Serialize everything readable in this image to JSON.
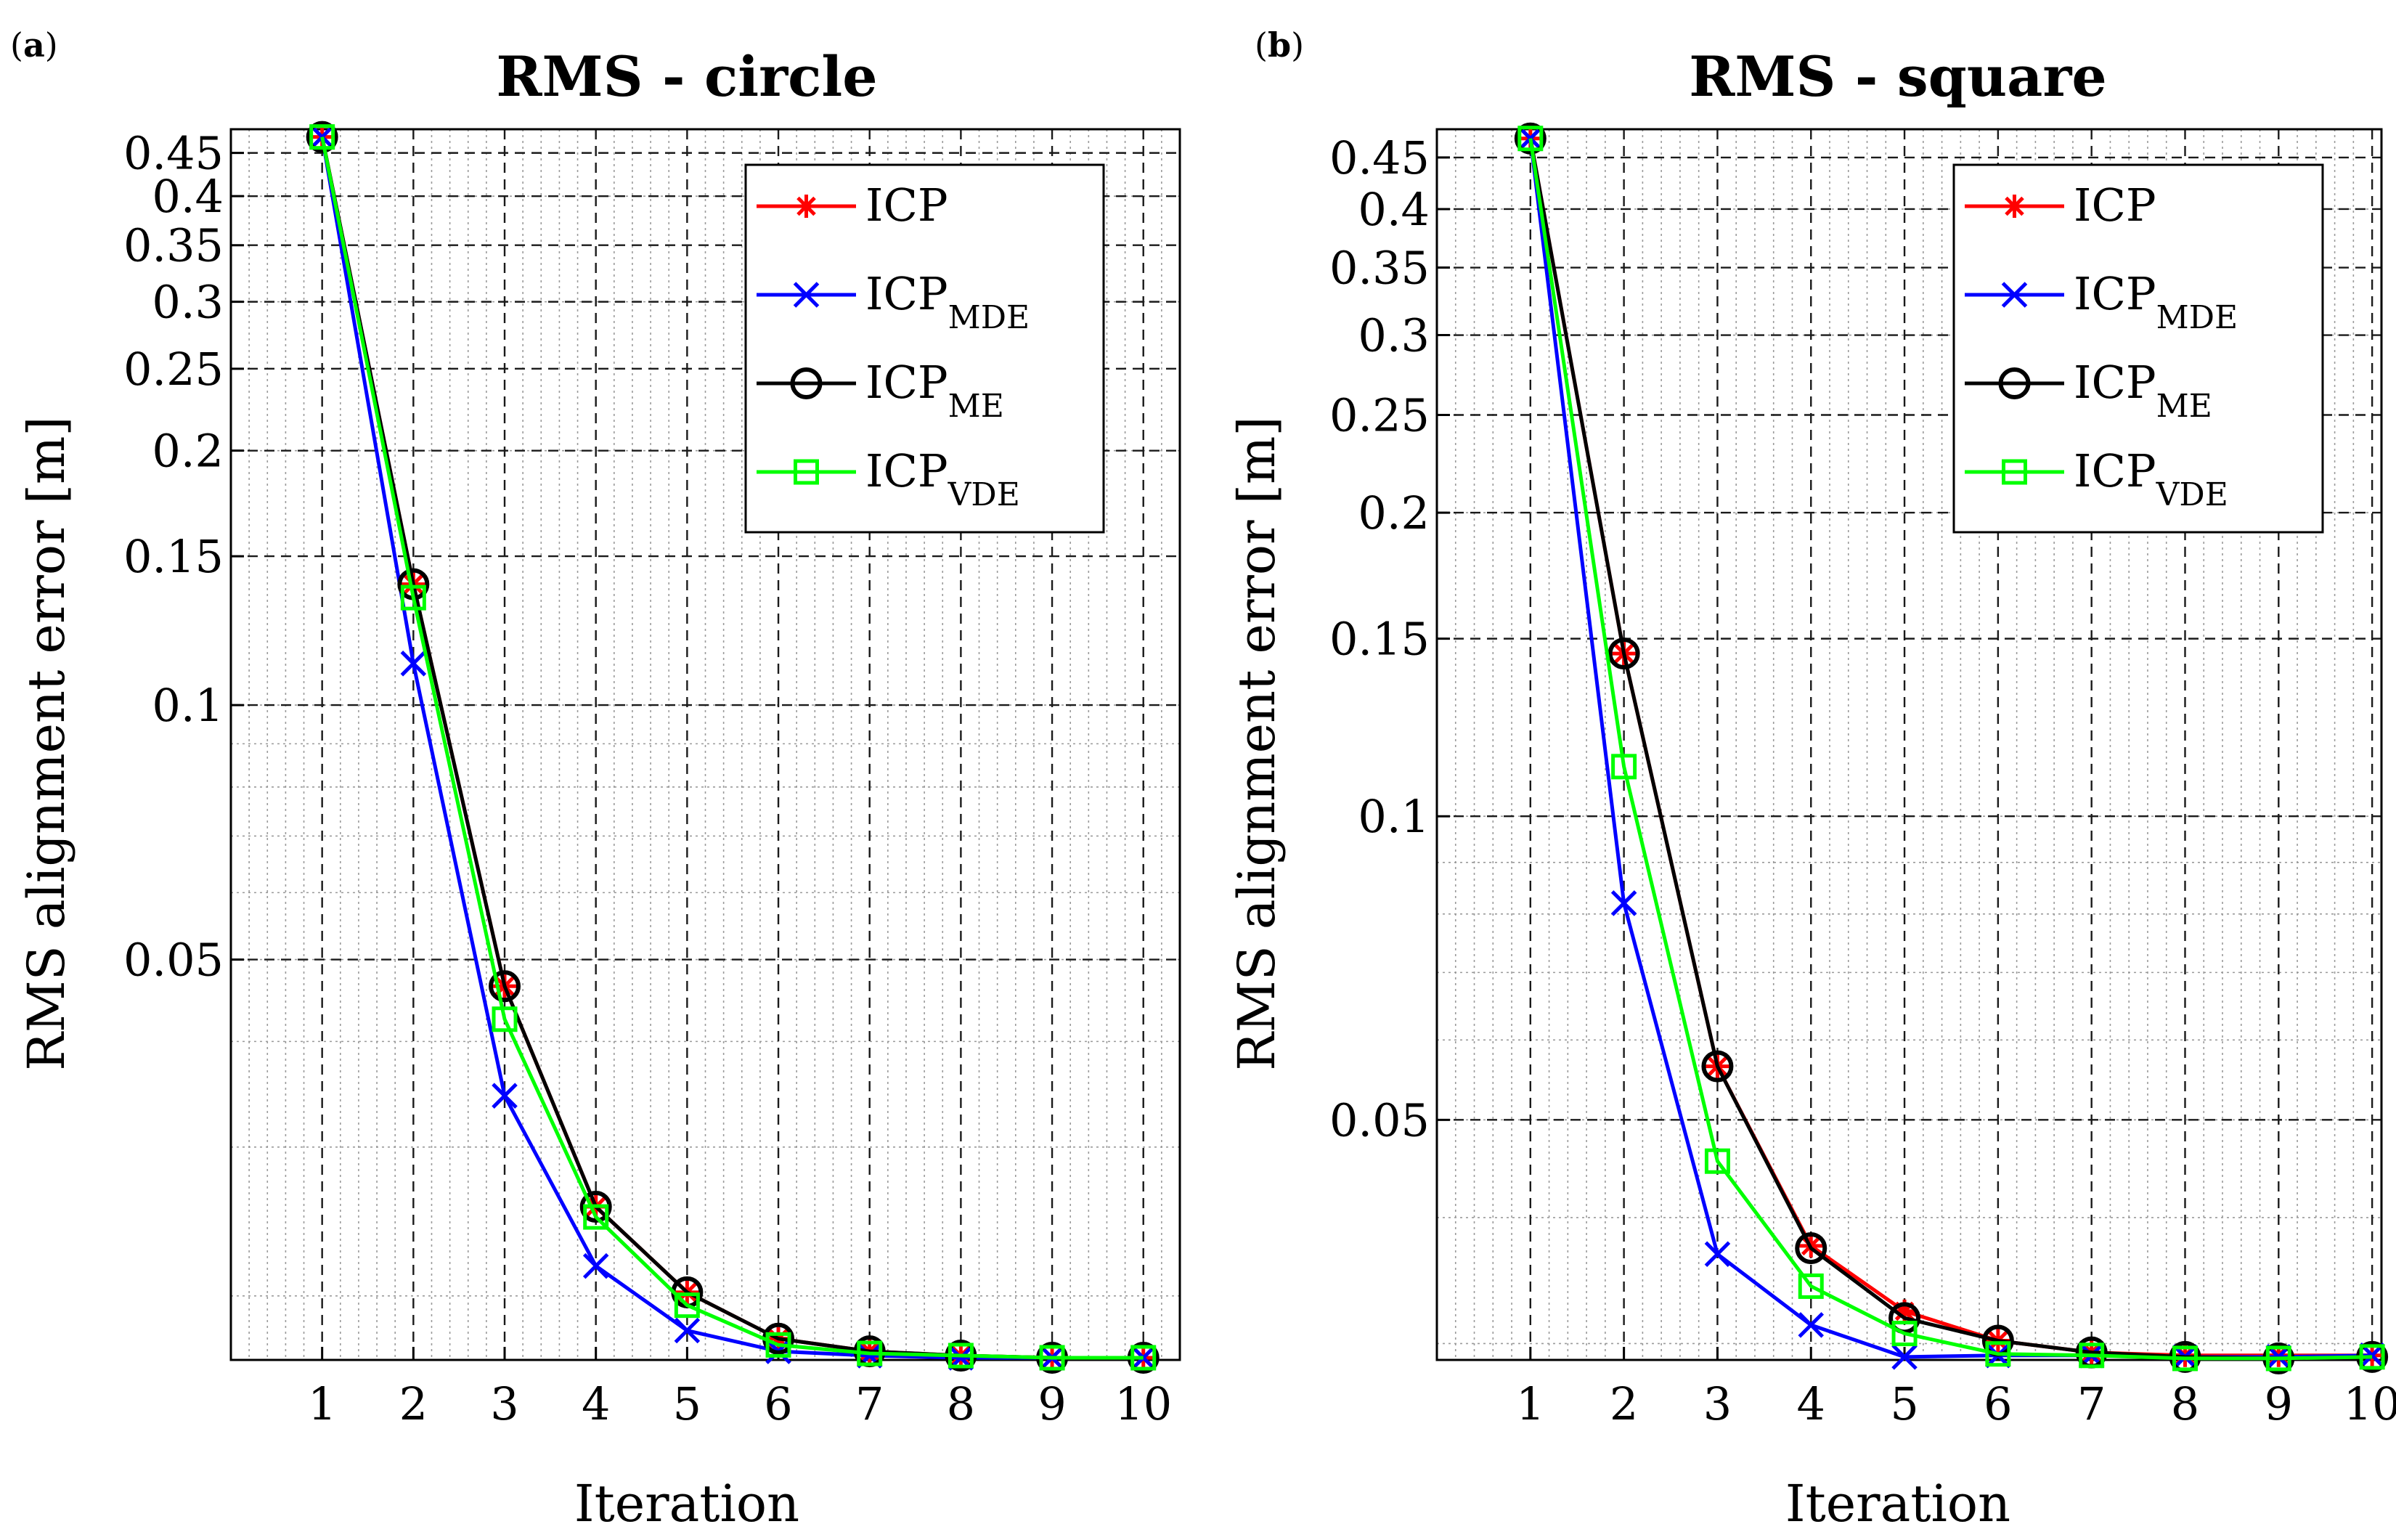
{
  "chart_data": [
    {
      "type": "line",
      "panel_label_prefix": "(",
      "panel_label_letter": "a",
      "panel_label_suffix": ")",
      "title": "RMS - circle",
      "xlabel": "Iteration",
      "ylabel": "RMS alignment error [m]",
      "yscale": "log",
      "xlim": [
        0,
        10.4
      ],
      "ylim": [
        0.0168,
        0.48
      ],
      "grid": true,
      "legend_position": "top-right",
      "x": [
        1,
        2,
        3,
        4,
        5,
        6,
        7,
        8,
        9,
        10
      ],
      "x_ticks": [
        "1",
        "2",
        "3",
        "4",
        "5",
        "6",
        "7",
        "8",
        "9",
        "10"
      ],
      "y_ticks": [
        {
          "value": 0.45,
          "label": "0.45"
        },
        {
          "value": 0.4,
          "label": "0.4"
        },
        {
          "value": 0.35,
          "label": "0.35"
        },
        {
          "value": 0.3,
          "label": "0.3"
        },
        {
          "value": 0.25,
          "label": "0.25"
        },
        {
          "value": 0.2,
          "label": "0.2"
        },
        {
          "value": 0.15,
          "label": "0.15"
        },
        {
          "value": 0.1,
          "label": "0.1"
        },
        {
          "value": 0.05,
          "label": "0.05"
        }
      ],
      "series": [
        {
          "name": "ICP",
          "sub": "",
          "color": "#ff0000",
          "marker": "asterisk",
          "values": [
            0.47,
            0.139,
            0.0465,
            0.0255,
            0.0202,
            0.0178,
            0.0172,
            0.017,
            0.0169,
            0.0169
          ]
        },
        {
          "name": "ICP",
          "sub": "MDE",
          "color": "#0000ff",
          "marker": "x",
          "values": [
            0.47,
            0.112,
            0.0345,
            0.0217,
            0.0182,
            0.0172,
            0.017,
            0.0169,
            0.0169,
            0.0169
          ]
        },
        {
          "name": "ICP",
          "sub": "ME",
          "color": "#000000",
          "marker": "circle",
          "values": [
            0.47,
            0.139,
            0.0465,
            0.0255,
            0.0202,
            0.0178,
            0.0172,
            0.017,
            0.0169,
            0.0169
          ]
        },
        {
          "name": "ICP",
          "sub": "VDE",
          "color": "#00ff00",
          "marker": "square",
          "values": [
            0.47,
            0.134,
            0.0425,
            0.0248,
            0.0195,
            0.0175,
            0.0171,
            0.017,
            0.0169,
            0.0169
          ]
        }
      ]
    },
    {
      "type": "line",
      "panel_label_prefix": "(",
      "panel_label_letter": "b",
      "panel_label_suffix": ")",
      "title": "RMS - square",
      "xlabel": "Iteration",
      "ylabel": "RMS alignment error [m]",
      "yscale": "log",
      "xlim": [
        0,
        10.1
      ],
      "ylim": [
        0.0289,
        0.48
      ],
      "grid": true,
      "legend_position": "top-right",
      "x": [
        1,
        2,
        3,
        4,
        5,
        6,
        7,
        8,
        9,
        10
      ],
      "x_ticks": [
        "1",
        "2",
        "3",
        "4",
        "5",
        "6",
        "7",
        "8",
        "9",
        "10"
      ],
      "y_ticks": [
        {
          "value": 0.45,
          "label": "0.45"
        },
        {
          "value": 0.4,
          "label": "0.4"
        },
        {
          "value": 0.35,
          "label": "0.35"
        },
        {
          "value": 0.3,
          "label": "0.3"
        },
        {
          "value": 0.25,
          "label": "0.25"
        },
        {
          "value": 0.2,
          "label": "0.2"
        },
        {
          "value": 0.15,
          "label": "0.15"
        },
        {
          "value": 0.1,
          "label": "0.1"
        },
        {
          "value": 0.05,
          "label": "0.05"
        }
      ],
      "series": [
        {
          "name": "ICP",
          "sub": "",
          "color": "#ff0000",
          "marker": "asterisk",
          "values": [
            0.47,
            0.145,
            0.0565,
            0.0375,
            0.0323,
            0.0302,
            0.0294,
            0.0292,
            0.0292,
            0.0292
          ]
        },
        {
          "name": "ICP",
          "sub": "MDE",
          "color": "#0000ff",
          "marker": "x",
          "values": [
            0.47,
            0.082,
            0.0368,
            0.0313,
            0.0291,
            0.0292,
            0.0292,
            0.0291,
            0.0291,
            0.0292
          ]
        },
        {
          "name": "ICP",
          "sub": "ME",
          "color": "#000000",
          "marker": "circle",
          "values": [
            0.47,
            0.145,
            0.0565,
            0.0373,
            0.0318,
            0.0302,
            0.0294,
            0.0291,
            0.029,
            0.0291
          ]
        },
        {
          "name": "ICP",
          "sub": "VDE",
          "color": "#00ff00",
          "marker": "square",
          "values": [
            0.47,
            0.112,
            0.0455,
            0.0342,
            0.0307,
            0.0293,
            0.0292,
            0.029,
            0.029,
            0.0291
          ]
        }
      ]
    }
  ]
}
